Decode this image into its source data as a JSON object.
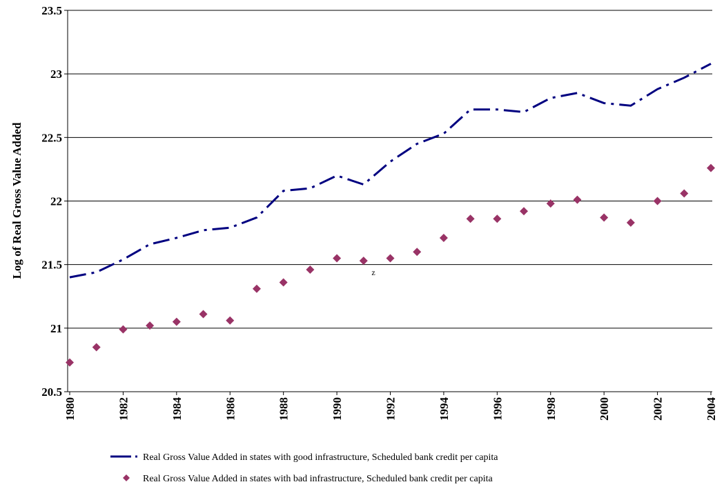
{
  "chart_data": {
    "type": "line",
    "y_label": "Log of Real Gross Value Added",
    "annotation": "z",
    "x": [
      1980,
      1981,
      1982,
      1983,
      1984,
      1985,
      1986,
      1987,
      1988,
      1989,
      1990,
      1991,
      1992,
      1993,
      1994,
      1995,
      1996,
      1997,
      1998,
      1999,
      2000,
      2001,
      2002,
      2003,
      2004
    ],
    "xlim": [
      1980,
      2004
    ],
    "xticks": [
      1980,
      1982,
      1984,
      1986,
      1988,
      1990,
      1992,
      1994,
      1996,
      1998,
      2000,
      2002,
      2004
    ],
    "ylim": [
      20.5,
      23.5
    ],
    "yticks": [
      20.5,
      21,
      21.5,
      22,
      22.5,
      23,
      23.5
    ],
    "grid": true,
    "legend": "bottom",
    "series": [
      {
        "name": "Real Gross Value Added in states with good infrastructure, Scheduled bank credit per capita",
        "color": "#000080",
        "style": "dash-dot",
        "values": [
          21.4,
          21.44,
          21.54,
          21.66,
          21.71,
          21.77,
          21.79,
          21.87,
          22.08,
          22.1,
          22.2,
          22.13,
          22.31,
          22.45,
          22.53,
          22.72,
          22.72,
          22.7,
          22.81,
          22.85,
          22.77,
          22.75,
          22.88,
          22.97,
          23.08
        ]
      },
      {
        "name": "Real Gross Value Added in states with bad infrastructure, Scheduled bank credit per capita",
        "color": "#993366",
        "style": "diamond",
        "values": [
          20.73,
          20.85,
          20.99,
          21.02,
          21.05,
          21.11,
          21.06,
          21.31,
          21.36,
          21.46,
          21.55,
          21.53,
          21.55,
          21.6,
          21.71,
          21.86,
          21.86,
          21.92,
          21.98,
          22.01,
          21.87,
          21.83,
          22.0,
          22.06,
          22.26
        ]
      }
    ]
  }
}
